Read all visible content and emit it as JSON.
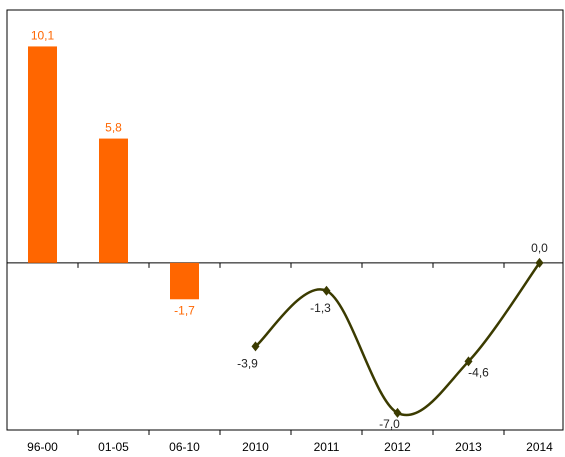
{
  "chart_data": {
    "type": "bar",
    "categories": [
      "96-00",
      "01-05",
      "06-10",
      "2010",
      "2011",
      "2012",
      "2013",
      "2014"
    ],
    "series": [
      {
        "type": "bar",
        "color": "#ff6600",
        "values": [
          10.1,
          5.8,
          -1.7,
          null,
          null,
          null,
          null,
          null
        ],
        "value_labels": [
          "10,1",
          "5,8",
          "-1,7",
          null,
          null,
          null,
          null,
          null
        ]
      },
      {
        "type": "line",
        "color": "#3b3b00",
        "smooth": true,
        "values": [
          null,
          null,
          null,
          -3.9,
          -1.3,
          -7.0,
          -4.6,
          0.0
        ],
        "value_labels": [
          null,
          null,
          null,
          "-3,9",
          "-1,3",
          "-7,0",
          "-4,6",
          "0,0"
        ]
      }
    ],
    "ylim": [
      -7.8,
      11.8
    ]
  }
}
